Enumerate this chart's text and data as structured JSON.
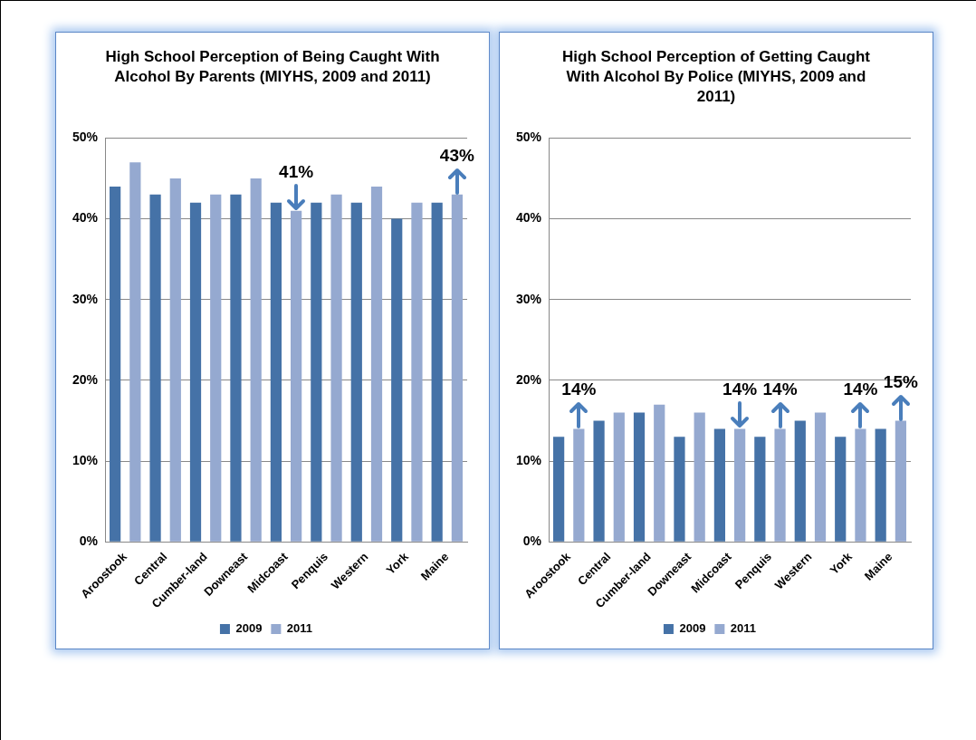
{
  "chart_data": [
    {
      "type": "bar",
      "title": "High School Perception of Being Caught With Alcohol By Parents (MIYHS, 2009 and 2011)",
      "categories": [
        "Aroostook",
        "Central",
        "Cumber-land",
        "Downeast",
        "Midcoast",
        "Penquis",
        "Western",
        "York",
        "Maine"
      ],
      "series": [
        {
          "name": "2009",
          "color": "#4572a7",
          "values": [
            44,
            43,
            42,
            43,
            42,
            42,
            42,
            40,
            42
          ]
        },
        {
          "name": "2011",
          "color": "#95a9d0",
          "values": [
            47,
            45,
            43,
            45,
            41,
            43,
            44,
            42,
            43
          ]
        }
      ],
      "ylim": [
        0,
        50
      ],
      "yticks": [
        {
          "value": 0,
          "label": "0%"
        },
        {
          "value": 10,
          "label": "10%"
        },
        {
          "value": 20,
          "label": "20%"
        },
        {
          "value": 30,
          "label": "30%"
        },
        {
          "value": 40,
          "label": "40%"
        },
        {
          "value": 50,
          "label": "50%"
        }
      ],
      "grid": "y",
      "legend": "bottom",
      "annotations": [
        {
          "text": "41%",
          "x": "Midcoast",
          "y": 41
        },
        {
          "text": "43%",
          "x": "Maine",
          "y": 43
        }
      ]
    },
    {
      "type": "bar",
      "title": "High School Perception of Getting Caught With Alcohol By Police (MIYHS, 2009 and 2011)",
      "categories": [
        "Aroostook",
        "Central",
        "Cumber-land",
        "Downeast",
        "Midcoast",
        "Penquis",
        "Western",
        "York",
        "Maine"
      ],
      "series": [
        {
          "name": "2009",
          "color": "#4572a7",
          "values": [
            13,
            15,
            16,
            13,
            14,
            13,
            15,
            13,
            14
          ]
        },
        {
          "name": "2011",
          "color": "#95a9d0",
          "values": [
            14,
            16,
            17,
            16,
            14,
            14,
            16,
            14,
            15
          ]
        }
      ],
      "ylim": [
        0,
        50
      ],
      "yticks": [
        {
          "value": 0,
          "label": "0%"
        },
        {
          "value": 10,
          "label": "10%"
        },
        {
          "value": 20,
          "label": "20%"
        },
        {
          "value": 30,
          "label": "30%"
        },
        {
          "value": 40,
          "label": "40%"
        },
        {
          "value": 50,
          "label": "50%"
        }
      ],
      "grid": "y",
      "legend": "bottom",
      "annotations": [
        {
          "text": "14%",
          "x": "Aroostook",
          "y": 14
        },
        {
          "text": "14%",
          "x": "Midcoast",
          "y": 14
        },
        {
          "text": "14%",
          "x": "Penquis",
          "y": 14
        },
        {
          "text": "14%",
          "x": "York",
          "y": 14
        },
        {
          "text": "15%",
          "x": "Maine",
          "y": 15
        }
      ]
    }
  ]
}
